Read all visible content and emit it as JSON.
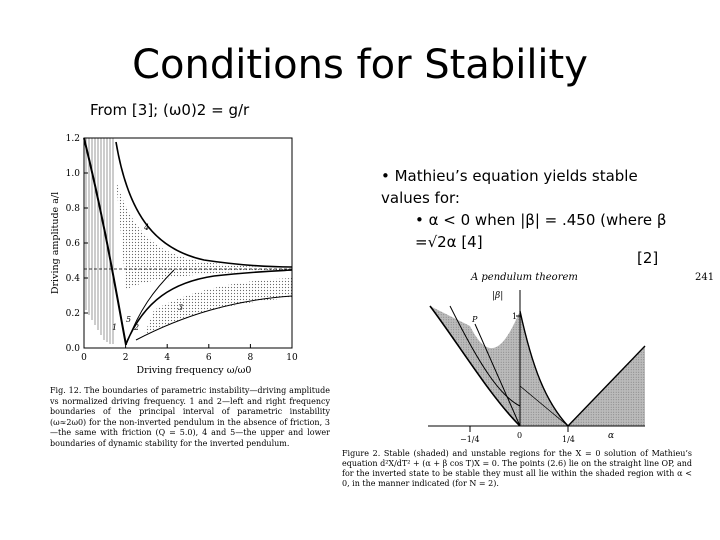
{
  "slide": {
    "title": "Conditions for Stability",
    "subtitle": "From [3]; (ω0)2 = g/r",
    "bullet_main": "• Mathieu’s equation yields stable values for:",
    "bullet_sub": "• α < 0 when |β| = .450 (where β =√2α [4]",
    "reference": "[2]"
  },
  "figure12": {
    "ylabel": "Driving amplitude a/l",
    "xlabel": "Driving frequency ω/ω0",
    "y_ticks": [
      "0.0",
      "0.2",
      "0.4",
      "0.6",
      "0.8",
      "1.0",
      "1.2"
    ],
    "x_ticks": [
      "0",
      "2",
      "4",
      "6",
      "8",
      "10"
    ],
    "curve_labels": [
      "1",
      "2",
      "3",
      "4",
      "5"
    ],
    "caption": "Fig. 12. The boundaries of parametric instability—driving amplitude vs normalized driving frequency. 1 and 2—left and right frequency boundaries of the principal interval of parametric instability (ω≈2ω0) for the non-inverted pendulum in the absence of friction, 3—the same with friction (Q = 5.0), 4 and 5—the upper and lower boundaries of dynamic stability for the inverted pendulum."
  },
  "figure2": {
    "running_head": "A pendulum theorem",
    "page_number": "241",
    "axis_beta": "|β|",
    "axis_alpha": "α",
    "point_label": "P",
    "tick_neg_quarter": "−1/4",
    "tick_zero": "0",
    "tick_quarter": "1/4",
    "tick_one": "1",
    "caption": "Figure 2. Stable (shaded) and unstable regions for the X = 0 solution of Mathieu’s equation d²X/dT² + (α + β cos T)X = 0. The points (2.6) lie on the straight line OP, and for the inverted state to be stable they must all lie within the shaded region with α < 0, in the manner indicated (for N = 2)."
  }
}
